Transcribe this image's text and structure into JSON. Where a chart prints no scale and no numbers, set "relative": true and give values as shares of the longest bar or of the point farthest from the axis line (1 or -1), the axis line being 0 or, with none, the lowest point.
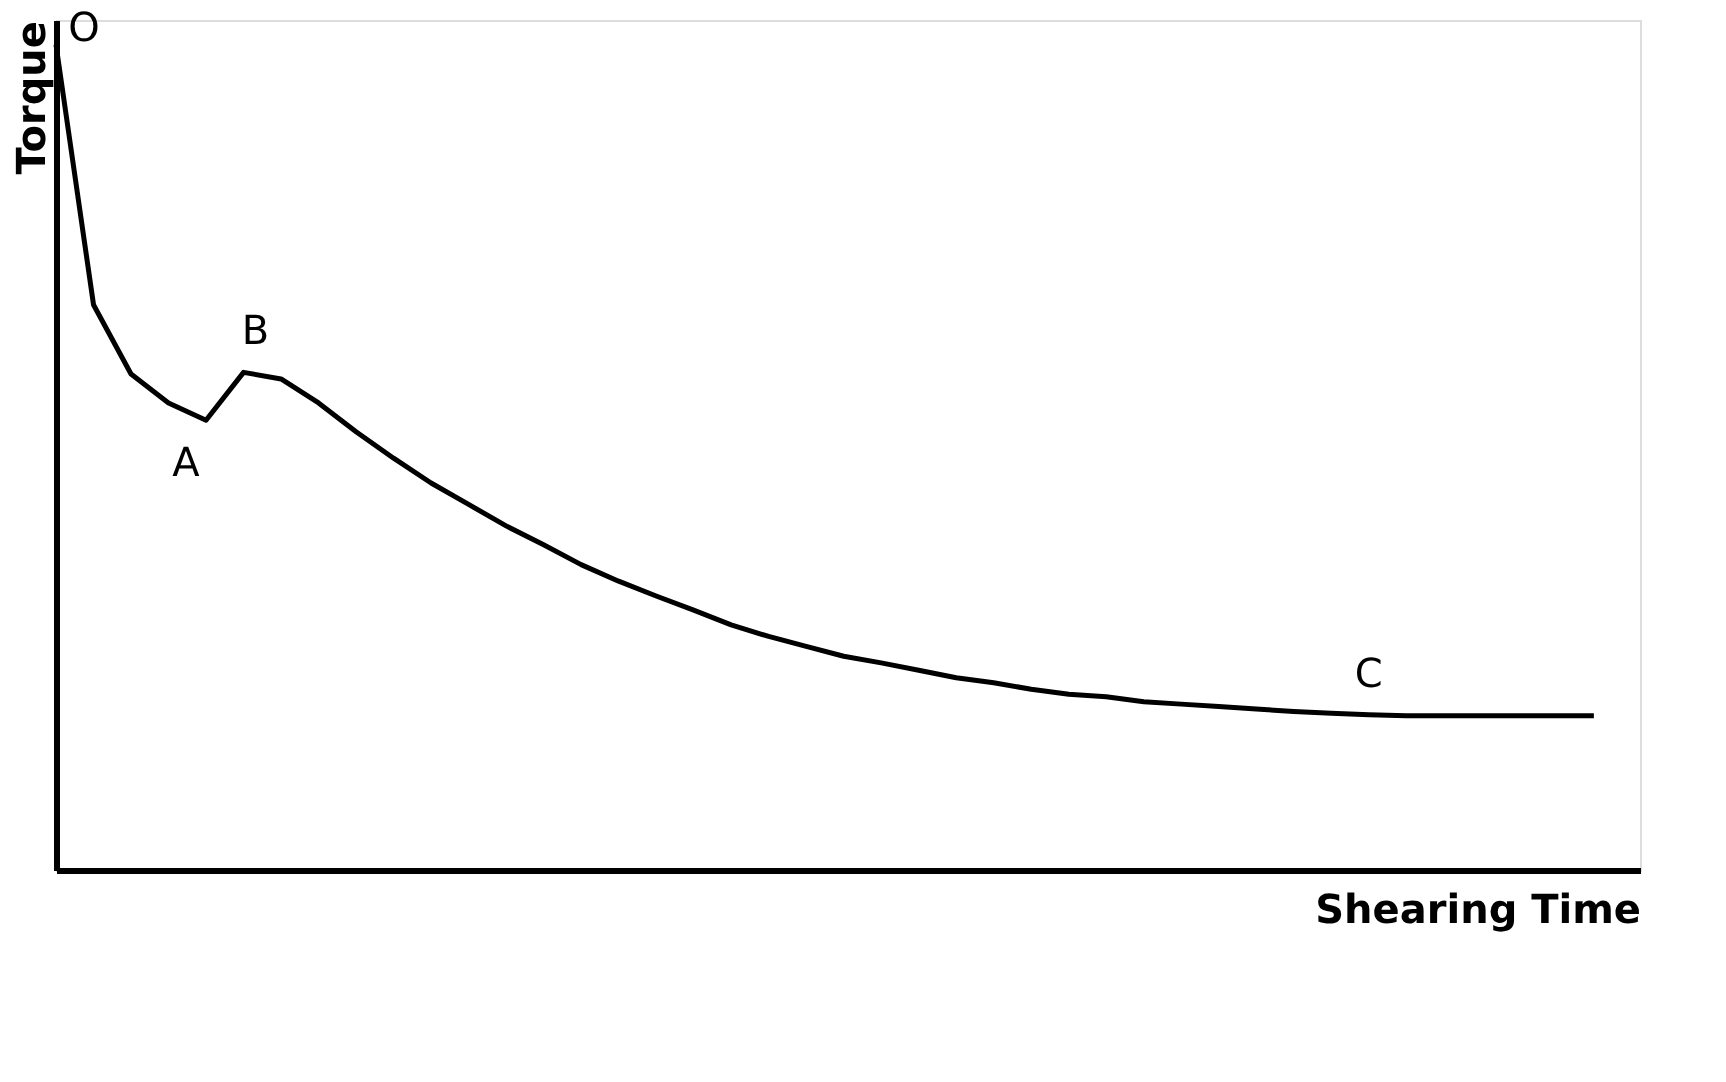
{
  "chart_data": {
    "type": "line",
    "relative": true,
    "xlabel": "Shearing Time",
    "ylabel": "Torque",
    "categories": [
      null,
      null,
      null,
      null,
      null,
      null,
      null,
      null,
      null,
      null,
      null,
      null,
      null,
      null,
      null,
      null,
      null,
      null,
      null,
      null,
      null,
      null,
      null,
      null,
      null,
      null,
      null,
      null,
      null,
      null,
      null,
      null,
      null,
      null,
      null,
      null,
      null,
      null,
      null,
      null,
      null,
      null
    ],
    "series": [
      {
        "color": "#000000",
        "values": [
          1.0,
          0.685,
          0.601,
          0.566,
          0.545,
          0.603,
          0.595,
          0.566,
          0.531,
          0.499,
          0.469,
          0.443,
          0.417,
          0.394,
          0.37,
          0.35,
          0.332,
          0.315,
          0.297,
          0.283,
          0.271,
          0.259,
          0.251,
          0.242,
          0.233,
          0.227,
          0.219,
          0.213,
          0.21,
          0.204,
          0.201,
          0.198,
          0.195,
          0.192,
          0.19,
          0.188,
          0.187,
          0.187,
          0.187,
          0.187,
          0.187,
          0.187
        ]
      }
    ],
    "annotations": [
      "O",
      "A",
      "B",
      "C"
    ],
    "grid": false,
    "marker": "none",
    "line_style": "solid"
  }
}
